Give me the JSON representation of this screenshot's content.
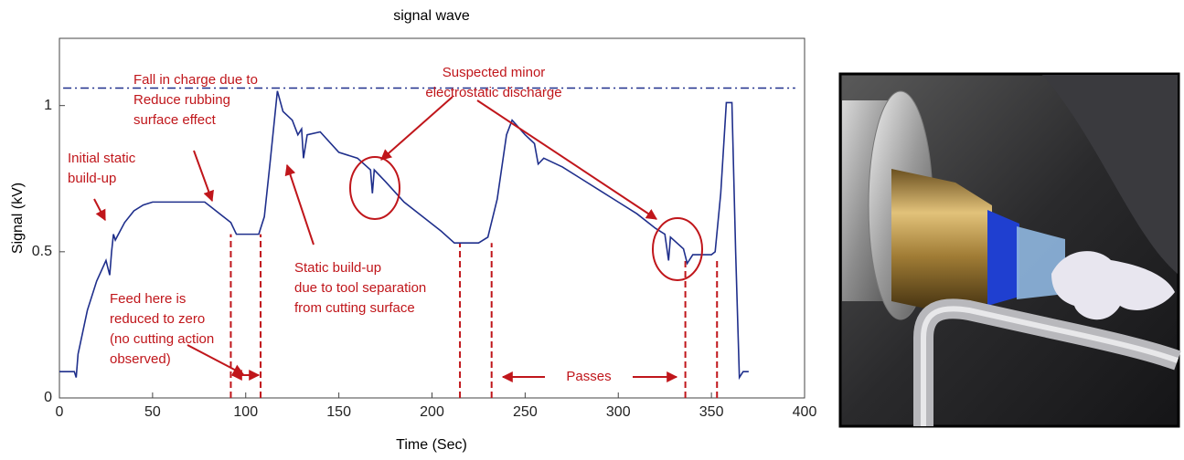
{
  "chart_data": {
    "type": "line",
    "title": "signal wave",
    "x_label": "Time (Sec)",
    "y_label": "Signal (kV)",
    "xlim": [
      0,
      400
    ],
    "ylim": [
      0,
      1.23
    ],
    "xticks": [
      0,
      50,
      100,
      150,
      200,
      250,
      300,
      350,
      400
    ],
    "yticks": [
      0,
      0.5,
      1
    ],
    "series": [
      {
        "color": "#1f2f8c",
        "x": [
          0,
          8,
          9,
          10,
          15,
          20,
          25,
          27,
          28,
          29,
          30,
          35,
          40,
          45,
          50,
          60,
          70,
          78,
          82,
          88,
          92,
          95,
          100,
          107,
          110,
          113,
          117,
          120,
          125,
          128,
          130,
          131,
          133,
          140,
          150,
          160,
          167,
          168,
          169,
          175,
          185,
          195,
          205,
          212,
          220,
          225,
          230,
          235,
          240,
          243,
          250,
          255,
          257,
          260,
          270,
          280,
          290,
          300,
          310,
          320,
          325,
          327,
          328,
          335,
          337,
          340,
          350,
          352,
          355,
          358,
          361,
          363,
          365,
          367,
          370
        ],
        "values": [
          0.09,
          0.09,
          0.07,
          0.15,
          0.3,
          0.4,
          0.47,
          0.42,
          0.5,
          0.56,
          0.54,
          0.6,
          0.64,
          0.66,
          0.67,
          0.67,
          0.67,
          0.67,
          0.65,
          0.62,
          0.6,
          0.56,
          0.56,
          0.56,
          0.62,
          0.8,
          1.05,
          0.98,
          0.95,
          0.9,
          0.92,
          0.82,
          0.9,
          0.91,
          0.84,
          0.82,
          0.78,
          0.7,
          0.78,
          0.74,
          0.67,
          0.62,
          0.57,
          0.53,
          0.53,
          0.53,
          0.55,
          0.68,
          0.9,
          0.95,
          0.9,
          0.87,
          0.8,
          0.82,
          0.79,
          0.75,
          0.71,
          0.67,
          0.63,
          0.58,
          0.56,
          0.47,
          0.55,
          0.51,
          0.46,
          0.49,
          0.49,
          0.5,
          0.7,
          1.01,
          1.01,
          0.5,
          0.07,
          0.09,
          0.09
        ]
      }
    ],
    "reference_level": {
      "value": 1.06,
      "x": [
        2,
        395
      ],
      "color": "#1f2f8c"
    },
    "annotation_color": "#c0161b",
    "markers": [
      {
        "x": 92,
        "top": 0.56
      },
      {
        "x": 108,
        "top": 0.56
      },
      {
        "x": 215,
        "top": 0.53
      },
      {
        "x": 232,
        "top": 0.53
      },
      {
        "x": 336,
        "top": 0.48
      },
      {
        "x": 353,
        "top": 0.48
      }
    ],
    "annotations": [
      {
        "lines": [
          "Fall in charge due to",
          "Reduce rubbing",
          "surface effect"
        ]
      },
      {
        "lines": [
          "Initial static",
          "build-up"
        ]
      },
      {
        "lines": [
          "Suspected minor",
          "electrostatic discharge"
        ]
      },
      {
        "lines": [
          "Static build-up",
          "due to tool separation",
          "from cutting surface"
        ]
      },
      {
        "lines": [
          "Feed here is",
          "reduced to zero",
          "(no cutting action",
          "observed)"
        ]
      },
      {
        "lines": [
          "Passes"
        ]
      }
    ]
  }
}
